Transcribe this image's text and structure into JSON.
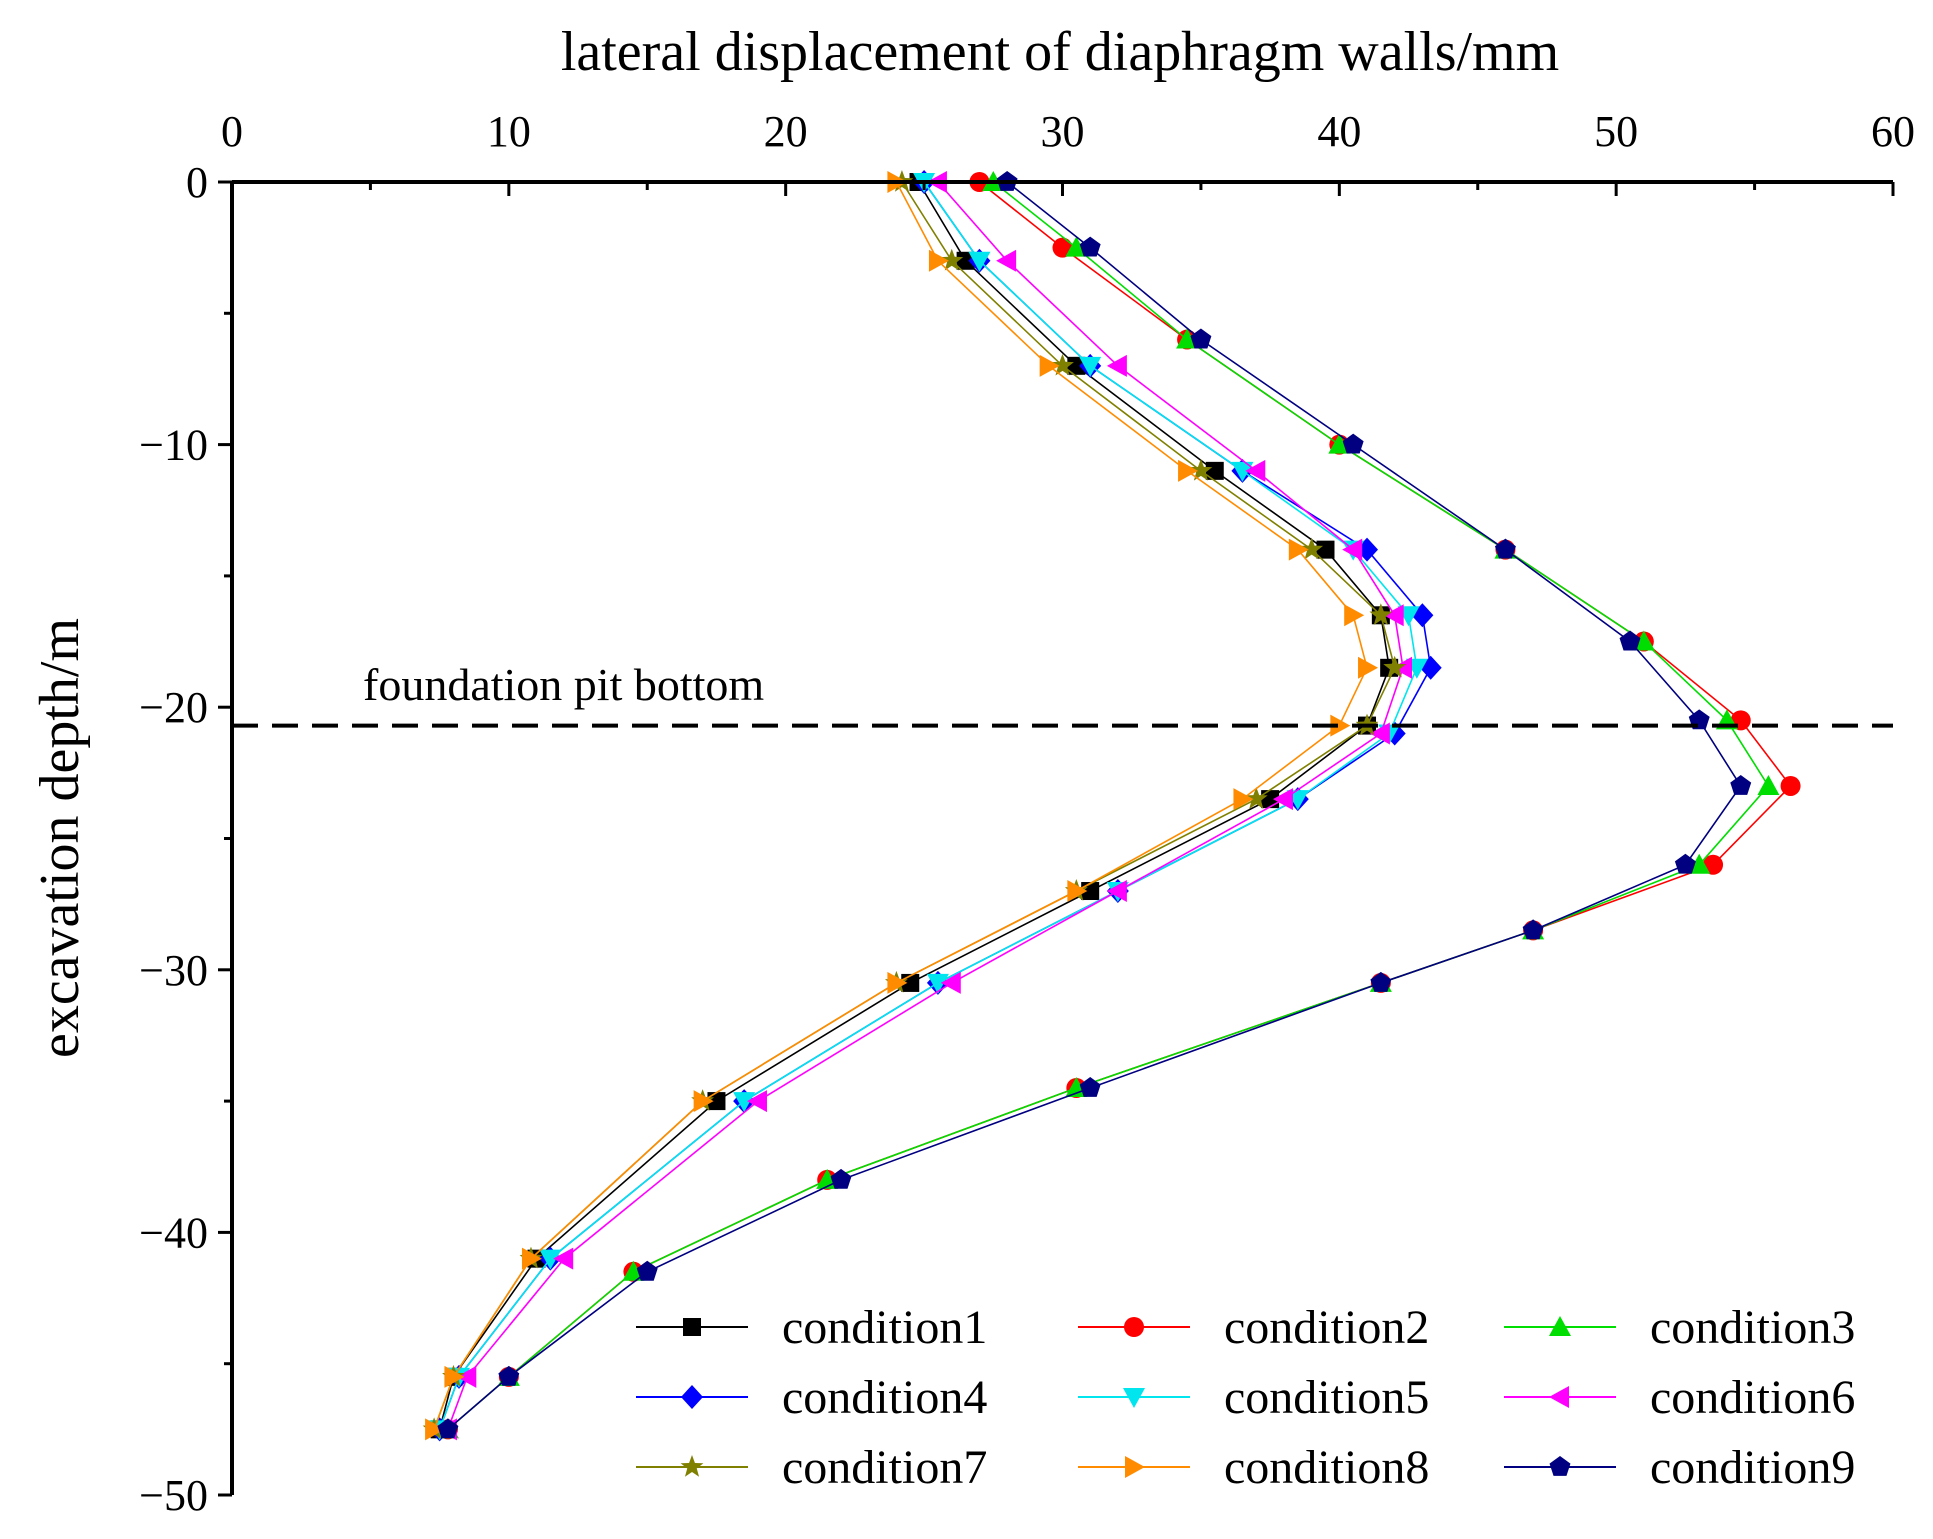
{
  "chart_data": {
    "type": "line",
    "title": "",
    "xlabel": "lateral displacement of diaphragm walls/mm",
    "ylabel": "excavation depth/m",
    "xlim": [
      0,
      60
    ],
    "ylim": [
      -50,
      0
    ],
    "x_ticks": [
      0,
      10,
      20,
      30,
      40,
      50,
      60
    ],
    "y_ticks": [
      0,
      -10,
      -20,
      -30,
      -40,
      -50
    ],
    "x_tick_labels": [
      "0",
      "10",
      "20",
      "30",
      "40",
      "50",
      "60"
    ],
    "y_tick_labels": [
      "0",
      "−10",
      "−20",
      "−30",
      "−40",
      "−50"
    ],
    "axis_position": "x-axis on top",
    "grid": false,
    "legend_position": "bottom-right",
    "annotation": {
      "text": "foundation pit bottom",
      "depth": -20.7,
      "style": "dashed horizontal line"
    },
    "series": [
      {
        "name": "condition1",
        "color": "#000000",
        "marker": "square",
        "points": [
          [
            24.8,
            0
          ],
          [
            26.5,
            -3
          ],
          [
            30.5,
            -7
          ],
          [
            35.5,
            -11
          ],
          [
            39.5,
            -14
          ],
          [
            41.5,
            -16.5
          ],
          [
            41.8,
            -18.5
          ],
          [
            41.0,
            -20.7
          ],
          [
            37.5,
            -23.5
          ],
          [
            31.0,
            -27.0
          ],
          [
            24.5,
            -30.5
          ],
          [
            17.5,
            -35.0
          ],
          [
            11.0,
            -41.0
          ],
          [
            8.0,
            -45.5
          ],
          [
            7.5,
            -47.5
          ]
        ]
      },
      {
        "name": "condition2",
        "color": "#ff0000",
        "marker": "circle",
        "points": [
          [
            27.0,
            0
          ],
          [
            30.0,
            -2.5
          ],
          [
            34.5,
            -6
          ],
          [
            40.0,
            -10
          ],
          [
            46.0,
            -14
          ],
          [
            51.0,
            -17.5
          ],
          [
            54.5,
            -20.5
          ],
          [
            56.3,
            -23.0
          ],
          [
            53.5,
            -26.0
          ],
          [
            47.0,
            -28.5
          ],
          [
            41.5,
            -30.5
          ],
          [
            30.5,
            -34.5
          ],
          [
            21.5,
            -38.0
          ],
          [
            14.5,
            -41.5
          ],
          [
            10.0,
            -45.5
          ],
          [
            7.8,
            -47.5
          ]
        ]
      },
      {
        "name": "condition3",
        "color": "#00dd00",
        "marker": "triangle-up",
        "points": [
          [
            27.5,
            0
          ],
          [
            30.5,
            -2.5
          ],
          [
            34.5,
            -6
          ],
          [
            40.0,
            -10
          ],
          [
            46.0,
            -14
          ],
          [
            51.0,
            -17.5
          ],
          [
            54.0,
            -20.5
          ],
          [
            55.5,
            -23.0
          ],
          [
            53.0,
            -26.0
          ],
          [
            47.0,
            -28.5
          ],
          [
            41.5,
            -30.5
          ],
          [
            30.5,
            -34.5
          ],
          [
            21.5,
            -38.0
          ],
          [
            14.5,
            -41.5
          ],
          [
            10.0,
            -45.5
          ],
          [
            7.8,
            -47.5
          ]
        ]
      },
      {
        "name": "condition4",
        "color": "#0000ff",
        "marker": "diamond",
        "points": [
          [
            25.0,
            0
          ],
          [
            27.0,
            -3
          ],
          [
            31.0,
            -7
          ],
          [
            36.5,
            -11
          ],
          [
            41.0,
            -14
          ],
          [
            43.0,
            -16.5
          ],
          [
            43.3,
            -18.5
          ],
          [
            42.0,
            -21.0
          ],
          [
            38.5,
            -23.5
          ],
          [
            32.0,
            -27.0
          ],
          [
            25.5,
            -30.5
          ],
          [
            18.5,
            -35.0
          ],
          [
            11.5,
            -41.0
          ],
          [
            8.2,
            -45.5
          ],
          [
            7.5,
            -47.5
          ]
        ]
      },
      {
        "name": "condition5",
        "color": "#00e5ee",
        "marker": "triangle-down",
        "points": [
          [
            25.0,
            0
          ],
          [
            27.0,
            -3
          ],
          [
            31.0,
            -7
          ],
          [
            36.5,
            -11
          ],
          [
            40.5,
            -14
          ],
          [
            42.5,
            -16.5
          ],
          [
            42.8,
            -18.5
          ],
          [
            41.8,
            -21.0
          ],
          [
            38.5,
            -23.5
          ],
          [
            32.0,
            -27.0
          ],
          [
            25.5,
            -30.5
          ],
          [
            18.5,
            -35.0
          ],
          [
            11.5,
            -41.0
          ],
          [
            8.2,
            -45.5
          ],
          [
            7.5,
            -47.5
          ]
        ]
      },
      {
        "name": "condition6",
        "color": "#ff00ff",
        "marker": "triangle-left",
        "points": [
          [
            25.5,
            0
          ],
          [
            28.0,
            -3
          ],
          [
            32.0,
            -7
          ],
          [
            37.0,
            -11
          ],
          [
            40.5,
            -14
          ],
          [
            42.0,
            -16.5
          ],
          [
            42.3,
            -18.5
          ],
          [
            41.5,
            -21.0
          ],
          [
            38.0,
            -23.5
          ],
          [
            32.0,
            -27.0
          ],
          [
            26.0,
            -30.5
          ],
          [
            19.0,
            -35.0
          ],
          [
            12.0,
            -41.0
          ],
          [
            8.5,
            -45.5
          ],
          [
            7.8,
            -47.5
          ]
        ]
      },
      {
        "name": "condition7",
        "color": "#808000",
        "marker": "star",
        "points": [
          [
            24.2,
            0
          ],
          [
            26.0,
            -3
          ],
          [
            30.0,
            -7
          ],
          [
            35.0,
            -11
          ],
          [
            39.0,
            -14
          ],
          [
            41.5,
            -16.5
          ],
          [
            42.0,
            -18.5
          ],
          [
            41.0,
            -20.7
          ],
          [
            37.0,
            -23.5
          ],
          [
            30.5,
            -27.0
          ],
          [
            24.0,
            -30.5
          ],
          [
            17.0,
            -35.0
          ],
          [
            10.8,
            -41.0
          ],
          [
            8.0,
            -45.5
          ],
          [
            7.3,
            -47.5
          ]
        ]
      },
      {
        "name": "condition8",
        "color": "#ff8c00",
        "marker": "triangle-right",
        "points": [
          [
            24.0,
            0
          ],
          [
            25.5,
            -3
          ],
          [
            29.5,
            -7
          ],
          [
            34.5,
            -11
          ],
          [
            38.5,
            -14
          ],
          [
            40.5,
            -16.5
          ],
          [
            41.0,
            -18.5
          ],
          [
            40.0,
            -20.7
          ],
          [
            36.5,
            -23.5
          ],
          [
            30.5,
            -27.0
          ],
          [
            24.0,
            -30.5
          ],
          [
            17.0,
            -35.0
          ],
          [
            10.8,
            -41.0
          ],
          [
            8.0,
            -45.5
          ],
          [
            7.3,
            -47.5
          ]
        ]
      },
      {
        "name": "condition9",
        "color": "#000080",
        "marker": "pentagon",
        "points": [
          [
            28.0,
            0
          ],
          [
            31.0,
            -2.5
          ],
          [
            35.0,
            -6
          ],
          [
            40.5,
            -10
          ],
          [
            46.0,
            -14
          ],
          [
            50.5,
            -17.5
          ],
          [
            53.0,
            -20.5
          ],
          [
            54.5,
            -23.0
          ],
          [
            52.5,
            -26.0
          ],
          [
            47.0,
            -28.5
          ],
          [
            41.5,
            -30.5
          ],
          [
            31.0,
            -34.5
          ],
          [
            22.0,
            -38.0
          ],
          [
            15.0,
            -41.5
          ],
          [
            10.0,
            -45.5
          ],
          [
            7.8,
            -47.5
          ]
        ]
      }
    ]
  }
}
